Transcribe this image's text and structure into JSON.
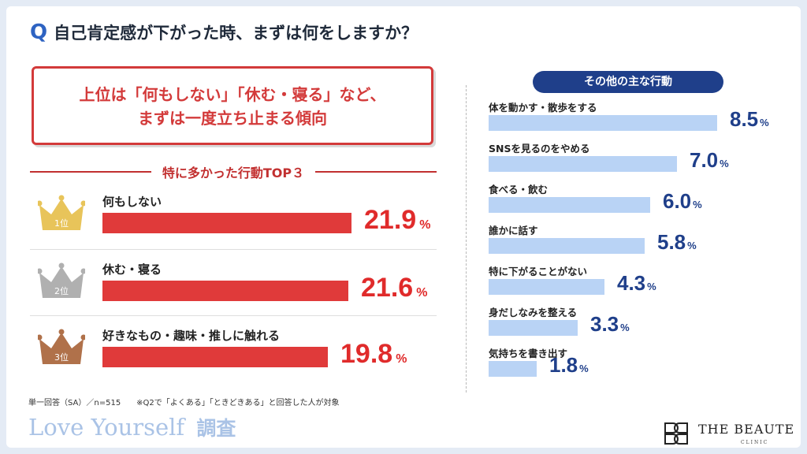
{
  "question": {
    "mark": "Q",
    "text": "自己肯定感が下がった時、まずは何をしますか？"
  },
  "highlight": {
    "line1": "上位は「何もしない」「休む・寝る」など、",
    "line2": "まずは一度立ち止まる傾向"
  },
  "top3": {
    "heading": "特に多かった行動TOP３",
    "items": [
      {
        "rank_label": "1位",
        "label": "何もしない",
        "value": 21.9,
        "value_text": "21.9"
      },
      {
        "rank_label": "2位",
        "label": "休む・寝る",
        "value": 21.6,
        "value_text": "21.6"
      },
      {
        "rank_label": "3位",
        "label": "好きなもの・趣味・推しに触れる",
        "value": 19.8,
        "value_text": "19.8"
      }
    ]
  },
  "others": {
    "heading": "その他の主な行動",
    "items": [
      {
        "label": "体を動かす・散歩をする",
        "value": 8.5,
        "value_text": "8.5"
      },
      {
        "label": "SNSを見るのをやめる",
        "value": 7.0,
        "value_text": "7.0"
      },
      {
        "label": "食べる・飲む",
        "value": 6.0,
        "value_text": "6.0"
      },
      {
        "label": "誰かに話す",
        "value": 5.8,
        "value_text": "5.8"
      },
      {
        "label": "特に下がることがない",
        "value": 4.3,
        "value_text": "4.3"
      },
      {
        "label": "身だしなみを整える",
        "value": 3.3,
        "value_text": "3.3"
      },
      {
        "label": "気持ちを書き出す",
        "value": 1.8,
        "value_text": "1.8"
      }
    ]
  },
  "percent_sign": "%",
  "footnote": "単一回答（SA）／n=515　　※Q2で「よくある」「ときどきある」と回答した人が対象",
  "brand_left": {
    "main": "Love Yourself",
    "suffix": "調査"
  },
  "brand_right": {
    "name": "THE BEAUTE",
    "sub": "CLINIC"
  },
  "colors": {
    "accent_red": "#e03a3a",
    "accent_blue": "#2e63c2",
    "navy": "#1f3f8a",
    "light_blue_bar": "#b9d3f5",
    "gold": "#e8c45a",
    "silver": "#b0b0b0",
    "bronze": "#b0714a"
  },
  "chart_data": [
    {
      "type": "bar",
      "title": "特に多かった行動TOP３",
      "categories": [
        "何もしない",
        "休む・寝る",
        "好きなもの・趣味・推しに触れる"
      ],
      "values": [
        21.9,
        21.6,
        19.8
      ],
      "unit": "%"
    },
    {
      "type": "bar",
      "title": "その他の主な行動",
      "categories": [
        "体を動かす・散歩をする",
        "SNSを見るのをやめる",
        "食べる・飲む",
        "誰かに話す",
        "特に下がることがない",
        "身だしなみを整える",
        "気持ちを書き出す"
      ],
      "values": [
        8.5,
        7.0,
        6.0,
        5.8,
        4.3,
        3.3,
        1.8
      ],
      "unit": "%"
    }
  ]
}
